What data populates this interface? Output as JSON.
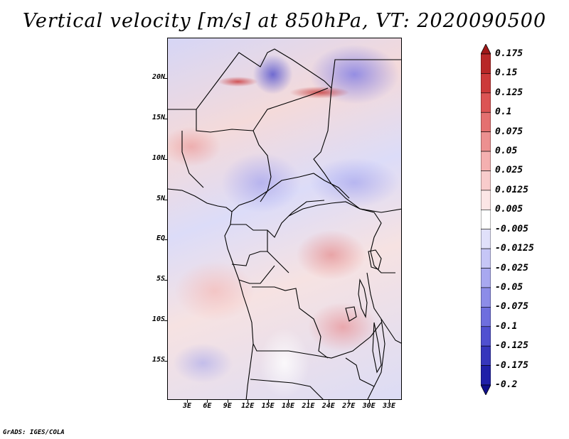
{
  "title": "Vertical velocity [m/s] at 850hPa, VT: 2020090500",
  "y_ticks": [
    "20N",
    "15N",
    "10N",
    "5N",
    "EQ",
    "5S",
    "10S",
    "15S"
  ],
  "x_ticks": [
    "3E",
    "6E",
    "9E",
    "12E",
    "15E",
    "18E",
    "21E",
    "24E",
    "27E",
    "30E",
    "33E"
  ],
  "colorbar": {
    "labels": [
      "0.175",
      "0.15",
      "0.125",
      "0.1",
      "0.075",
      "0.05",
      "0.025",
      "0.0125",
      "0.005",
      "-0.005",
      "-0.0125",
      "-0.025",
      "-0.05",
      "-0.075",
      "-0.1",
      "-0.125",
      "-0.175",
      "-0.2"
    ],
    "colors": [
      "#a01818",
      "#b82828",
      "#cc3a3a",
      "#dc5454",
      "#e47070",
      "#ec9090",
      "#f4b0b0",
      "#f8cccc",
      "#fce6e6",
      "#ffffff",
      "#e0e0fa",
      "#c6c6f6",
      "#a8a8f0",
      "#8c8ce8",
      "#6e6ede",
      "#5050d0",
      "#3636bc",
      "#2020a8",
      "#10108c"
    ]
  },
  "credit": "GrADS: IGES/COLA"
}
